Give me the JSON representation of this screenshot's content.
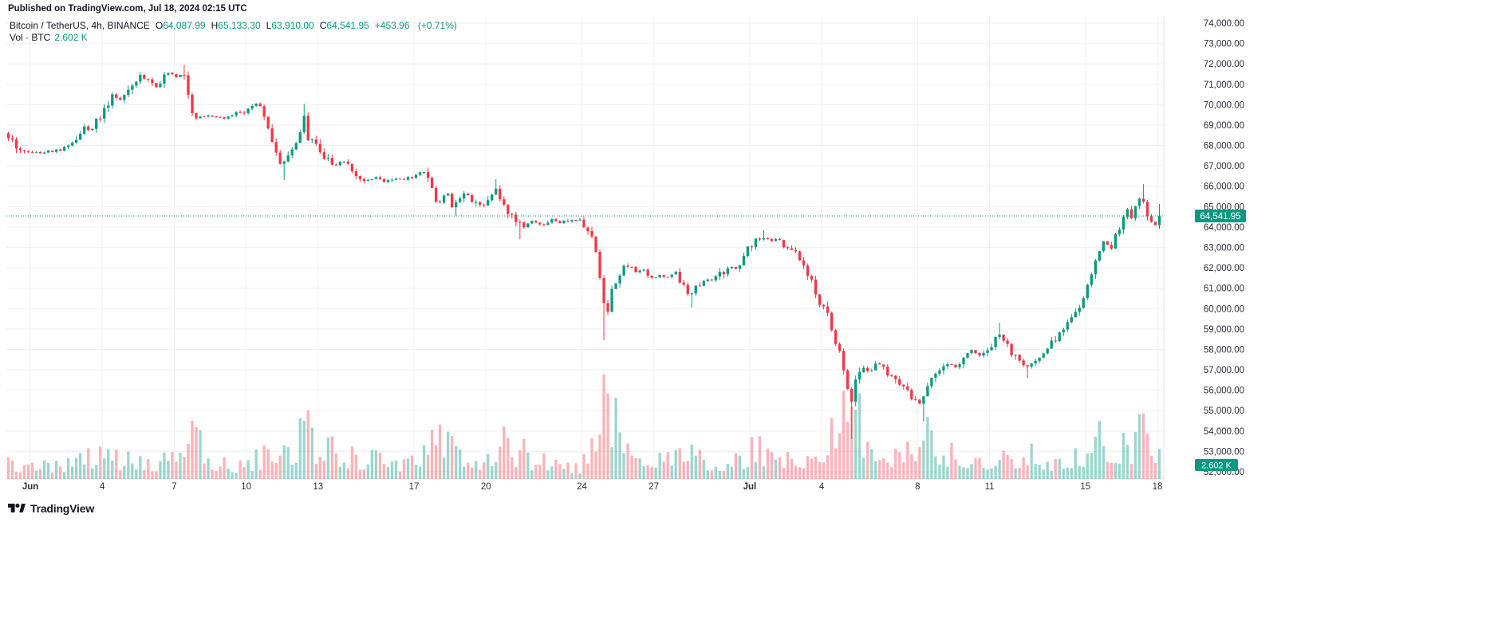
{
  "header": {
    "published_line": "Published on TradingView.com, Jul 18, 2024 02:15 UTC"
  },
  "legend": {
    "symbol_line": "Bitcoin / TetherUS, 4h, BINANCE",
    "ohlc": [
      {
        "label": "O",
        "value": "64,087.99"
      },
      {
        "label": "H",
        "value": "65,133.30"
      },
      {
        "label": "L",
        "value": "63,910.00"
      },
      {
        "label": "C",
        "value": "64,541.95"
      }
    ],
    "change": "+453.96",
    "change_pct": "(+0.71%)",
    "vol_label": "Vol · BTC",
    "vol_value": "2.602 K"
  },
  "footer": {
    "brand": "TradingView"
  },
  "colors": {
    "up": "#089981",
    "down": "#f23645",
    "vol_up": "rgba(8,153,129,0.40)",
    "vol_down": "rgba(242,54,69,0.38)",
    "grid": "#eef0f3",
    "axis_border": "#e0e3eb",
    "axis_text": "#2a2e39",
    "accent": "#089981",
    "badge_text": "#ffffff"
  },
  "chart_data": {
    "type": "candlestick",
    "symbol": "Bitcoin / TetherUS",
    "interval": "4h",
    "exchange": "BINANCE",
    "title": "Bitcoin / TetherUS, 4h, BINANCE",
    "last_candle": {
      "open": 64087.99,
      "high": 65133.3,
      "low": 63910.0,
      "close": 64541.95
    },
    "last_price": 64541.95,
    "last_price_label": "64,541.95",
    "last_volume_k": 2.602,
    "last_volume_label": "2.602 K",
    "y_axis_range": [
      52000,
      74000
    ],
    "y_ticks": [
      {
        "v": 74000,
        "label": "74,000.00"
      },
      {
        "v": 73000,
        "label": "73,000.00"
      },
      {
        "v": 72000,
        "label": "72,000.00"
      },
      {
        "v": 71000,
        "label": "71,000.00"
      },
      {
        "v": 70000,
        "label": "70,000.00"
      },
      {
        "v": 69000,
        "label": "69,000.00"
      },
      {
        "v": 68000,
        "label": "68,000.00"
      },
      {
        "v": 67000,
        "label": "67,000.00"
      },
      {
        "v": 66000,
        "label": "66,000.00"
      },
      {
        "v": 65000,
        "label": "65,000.00"
      },
      {
        "v": 64000,
        "label": "64,000.00"
      },
      {
        "v": 63000,
        "label": "63,000.00"
      },
      {
        "v": 62000,
        "label": "62,000.00"
      },
      {
        "v": 61000,
        "label": "61,000.00"
      },
      {
        "v": 60000,
        "label": "60,000.00"
      },
      {
        "v": 59000,
        "label": "59,000.00"
      },
      {
        "v": 58000,
        "label": "58,000.00"
      },
      {
        "v": 57000,
        "label": "57,000.00"
      },
      {
        "v": 56000,
        "label": "56,000.00"
      },
      {
        "v": 55000,
        "label": "55,000.00"
      },
      {
        "v": 54000,
        "label": "54,000.00"
      },
      {
        "v": 53000,
        "label": "53,000.00"
      },
      {
        "v": 52000,
        "label": "52,000.00"
      }
    ],
    "x_ticks": [
      {
        "label": "Jun",
        "day": 0,
        "bold": true
      },
      {
        "label": "4",
        "day": 3
      },
      {
        "label": "7",
        "day": 6
      },
      {
        "label": "10",
        "day": 9
      },
      {
        "label": "13",
        "day": 12
      },
      {
        "label": "17",
        "day": 16
      },
      {
        "label": "20",
        "day": 19
      },
      {
        "label": "24",
        "day": 23
      },
      {
        "label": "27",
        "day": 26
      },
      {
        "label": "Jul",
        "day": 30,
        "bold": true
      },
      {
        "label": "4",
        "day": 33
      },
      {
        "label": "8",
        "day": 37
      },
      {
        "label": "11",
        "day": 40
      },
      {
        "label": "15",
        "day": 44
      },
      {
        "label": "18",
        "day": 47
      }
    ],
    "time_axis": {
      "start_day": -1.0,
      "end_day": 47.1667,
      "day_zero": "Jun 1, 2024",
      "candles_per_day": 6
    },
    "price_path": [
      [
        -1.0,
        68600
      ],
      [
        -0.7,
        68300
      ],
      [
        -0.4,
        67800
      ],
      [
        0.0,
        67700
      ],
      [
        0.5,
        67650
      ],
      [
        1.0,
        67750
      ],
      [
        1.5,
        67850
      ],
      [
        2.0,
        68200
      ],
      [
        2.3,
        68900
      ],
      [
        2.6,
        68700
      ],
      [
        2.9,
        69300
      ],
      [
        3.2,
        69800
      ],
      [
        3.5,
        70350
      ],
      [
        3.8,
        70200
      ],
      [
        4.1,
        70650
      ],
      [
        4.4,
        71050
      ],
      [
        4.7,
        71400
      ],
      [
        5.0,
        71200
      ],
      [
        5.3,
        70850
      ],
      [
        5.6,
        71250
      ],
      [
        5.9,
        71500
      ],
      [
        6.2,
        71350
      ],
      [
        6.45,
        71650
      ],
      [
        6.65,
        70700
      ],
      [
        6.85,
        69450
      ],
      [
        7.2,
        69350
      ],
      [
        7.7,
        69450
      ],
      [
        8.2,
        69350
      ],
      [
        8.7,
        69550
      ],
      [
        9.2,
        69750
      ],
      [
        9.55,
        70050
      ],
      [
        9.8,
        69700
      ],
      [
        10.05,
        68700
      ],
      [
        10.3,
        67550
      ],
      [
        10.55,
        67050
      ],
      [
        10.8,
        67550
      ],
      [
        11.05,
        68100
      ],
      [
        11.3,
        68250
      ],
      [
        11.45,
        69850
      ],
      [
        11.62,
        68350
      ],
      [
        11.9,
        68150
      ],
      [
        12.2,
        67650
      ],
      [
        12.5,
        67250
      ],
      [
        12.8,
        67000
      ],
      [
        13.1,
        67350
      ],
      [
        13.4,
        66900
      ],
      [
        13.75,
        66450
      ],
      [
        14.1,
        66250
      ],
      [
        14.5,
        66500
      ],
      [
        14.9,
        66250
      ],
      [
        15.3,
        66400
      ],
      [
        15.7,
        66300
      ],
      [
        16.1,
        66550
      ],
      [
        16.4,
        66750
      ],
      [
        16.65,
        66550
      ],
      [
        16.9,
        65450
      ],
      [
        17.15,
        65200
      ],
      [
        17.45,
        65750
      ],
      [
        17.7,
        64950
      ],
      [
        18.0,
        65350
      ],
      [
        18.3,
        65650
      ],
      [
        18.6,
        65200
      ],
      [
        18.9,
        64950
      ],
      [
        19.2,
        65350
      ],
      [
        19.45,
        65950
      ],
      [
        19.75,
        65250
      ],
      [
        20.05,
        64750
      ],
      [
        20.35,
        64150
      ],
      [
        20.65,
        63950
      ],
      [
        21.0,
        64250
      ],
      [
        21.4,
        64100
      ],
      [
        21.8,
        64350
      ],
      [
        22.2,
        64200
      ],
      [
        22.6,
        64400
      ],
      [
        23.0,
        64300
      ],
      [
        23.35,
        63850
      ],
      [
        23.55,
        63250
      ],
      [
        23.75,
        62200
      ],
      [
        23.95,
        60700
      ],
      [
        24.15,
        59800
      ],
      [
        24.35,
        60900
      ],
      [
        24.55,
        61500
      ],
      [
        24.8,
        61900
      ],
      [
        25.1,
        62050
      ],
      [
        25.4,
        61800
      ],
      [
        25.7,
        61950
      ],
      [
        26.0,
        61450
      ],
      [
        26.35,
        61650
      ],
      [
        26.7,
        61500
      ],
      [
        27.0,
        61800
      ],
      [
        27.3,
        61150
      ],
      [
        27.6,
        60700
      ],
      [
        27.9,
        61150
      ],
      [
        28.2,
        61500
      ],
      [
        28.5,
        61350
      ],
      [
        28.85,
        61650
      ],
      [
        29.15,
        62100
      ],
      [
        29.45,
        61900
      ],
      [
        29.75,
        62350
      ],
      [
        30.05,
        62950
      ],
      [
        30.35,
        63400
      ],
      [
        30.6,
        63550
      ],
      [
        30.9,
        63250
      ],
      [
        31.2,
        63400
      ],
      [
        31.5,
        63150
      ],
      [
        31.8,
        62900
      ],
      [
        32.1,
        62450
      ],
      [
        32.4,
        62050
      ],
      [
        32.7,
        61250
      ],
      [
        33.0,
        60350
      ],
      [
        33.3,
        59700
      ],
      [
        33.6,
        58650
      ],
      [
        33.9,
        57500
      ],
      [
        34.1,
        56400
      ],
      [
        34.3,
        55300
      ],
      [
        34.5,
        56450
      ],
      [
        34.8,
        57150
      ],
      [
        35.1,
        56850
      ],
      [
        35.4,
        57400
      ],
      [
        35.7,
        57100
      ],
      [
        36.0,
        56550
      ],
      [
        36.35,
        56200
      ],
      [
        36.7,
        55850
      ],
      [
        37.0,
        55500
      ],
      [
        37.25,
        55300
      ],
      [
        37.5,
        56100
      ],
      [
        37.8,
        56700
      ],
      [
        38.1,
        57050
      ],
      [
        38.4,
        57350
      ],
      [
        38.7,
        57150
      ],
      [
        39.0,
        57600
      ],
      [
        39.3,
        57950
      ],
      [
        39.6,
        57650
      ],
      [
        39.9,
        57850
      ],
      [
        40.2,
        58150
      ],
      [
        40.45,
        58850
      ],
      [
        40.7,
        58300
      ],
      [
        41.0,
        57800
      ],
      [
        41.3,
        57400
      ],
      [
        41.6,
        57100
      ],
      [
        41.9,
        57500
      ],
      [
        42.2,
        57800
      ],
      [
        42.5,
        58100
      ],
      [
        42.8,
        58450
      ],
      [
        43.1,
        59000
      ],
      [
        43.45,
        59600
      ],
      [
        43.75,
        60050
      ],
      [
        44.05,
        60650
      ],
      [
        44.3,
        61500
      ],
      [
        44.5,
        62350
      ],
      [
        44.7,
        62900
      ],
      [
        44.9,
        63300
      ],
      [
        45.1,
        62850
      ],
      [
        45.35,
        63600
      ],
      [
        45.6,
        64350
      ],
      [
        45.8,
        64750
      ],
      [
        46.0,
        64550
      ],
      [
        46.2,
        65150
      ],
      [
        46.35,
        65600
      ],
      [
        46.55,
        65050
      ],
      [
        46.75,
        64350
      ],
      [
        46.95,
        64087.99
      ],
      [
        47.1667,
        64541.95
      ]
    ],
    "wick_events": [
      {
        "day": 6.45,
        "high": 71950
      },
      {
        "day": 10.55,
        "low": 66300
      },
      {
        "day": 11.45,
        "high": 70050
      },
      {
        "day": 17.7,
        "low": 64550
      },
      {
        "day": 19.45,
        "high": 66350
      },
      {
        "day": 20.4,
        "low": 63400
      },
      {
        "day": 23.95,
        "low": 58450
      },
      {
        "day": 27.6,
        "low": 60050
      },
      {
        "day": 30.6,
        "high": 63850
      },
      {
        "day": 34.3,
        "low": 53600
      },
      {
        "day": 37.25,
        "low": 54450
      },
      {
        "day": 40.45,
        "high": 59300
      },
      {
        "day": 41.6,
        "low": 56600
      },
      {
        "day": 46.35,
        "high": 66100
      }
    ],
    "volume_path_k": [
      [
        -1,
        1.5
      ],
      [
        0,
        1.1
      ],
      [
        1,
        0.9
      ],
      [
        2,
        1.4
      ],
      [
        3,
        1.8
      ],
      [
        4,
        1.6
      ],
      [
        5,
        1.3
      ],
      [
        6,
        1.8
      ],
      [
        6.7,
        5.8
      ],
      [
        7.2,
        2.2
      ],
      [
        8,
        1.2
      ],
      [
        9,
        1.0
      ],
      [
        10,
        2.2
      ],
      [
        10.4,
        3.6
      ],
      [
        11,
        2.6
      ],
      [
        11.45,
        5.2
      ],
      [
        12,
        2.4
      ],
      [
        12.6,
        3.2
      ],
      [
        13,
        2.0
      ],
      [
        14,
        1.6
      ],
      [
        15,
        1.3
      ],
      [
        16,
        1.4
      ],
      [
        16.9,
        4.6
      ],
      [
        17.5,
        2.6
      ],
      [
        18,
        2.4
      ],
      [
        18.6,
        1.8
      ],
      [
        19.2,
        1.7
      ],
      [
        19.5,
        3.9
      ],
      [
        20,
        2.2
      ],
      [
        20.5,
        2.4
      ],
      [
        21,
        1.5
      ],
      [
        22,
        1.1
      ],
      [
        23,
        1.0
      ],
      [
        23.6,
        3.4
      ],
      [
        23.95,
        7.8
      ],
      [
        24.2,
        6.2
      ],
      [
        24.6,
        3.4
      ],
      [
        25,
        2.6
      ],
      [
        25.5,
        1.9
      ],
      [
        26,
        1.6
      ],
      [
        26.7,
        1.7
      ],
      [
        27.3,
        2.3
      ],
      [
        27.6,
        2.8
      ],
      [
        28,
        1.7
      ],
      [
        29,
        1.5
      ],
      [
        29.7,
        1.6
      ],
      [
        30.1,
        2.4
      ],
      [
        30.6,
        2.1
      ],
      [
        31,
        1.5
      ],
      [
        31.8,
        1.4
      ],
      [
        32.2,
        1.9
      ],
      [
        32.7,
        2.6
      ],
      [
        33,
        3.1
      ],
      [
        33.6,
        3.6
      ],
      [
        34.1,
        6.8
      ],
      [
        34.35,
        7.2
      ],
      [
        34.6,
        4.4
      ],
      [
        35,
        2.8
      ],
      [
        35.5,
        2.2
      ],
      [
        36,
        1.9
      ],
      [
        36.6,
        2.1
      ],
      [
        37.0,
        3.0
      ],
      [
        37.25,
        4.8
      ],
      [
        37.6,
        2.8
      ],
      [
        38,
        2.2
      ],
      [
        38.5,
        1.9
      ],
      [
        39,
        1.7
      ],
      [
        39.5,
        1.9
      ],
      [
        40,
        1.7
      ],
      [
        40.45,
        3.1
      ],
      [
        41,
        2.0
      ],
      [
        41.6,
        2.2
      ],
      [
        42,
        1.6
      ],
      [
        42.5,
        1.5
      ],
      [
        43,
        1.8
      ],
      [
        43.5,
        2.1
      ],
      [
        44,
        2.3
      ],
      [
        44.4,
        3.3
      ],
      [
        44.8,
        3.1
      ],
      [
        45.2,
        2.4
      ],
      [
        45.6,
        2.9
      ],
      [
        46,
        2.7
      ],
      [
        46.35,
        3.6
      ],
      [
        46.6,
        3.0
      ],
      [
        46.9,
        2.2
      ],
      [
        47.1,
        2.6
      ]
    ],
    "volume_max_k": 9
  }
}
